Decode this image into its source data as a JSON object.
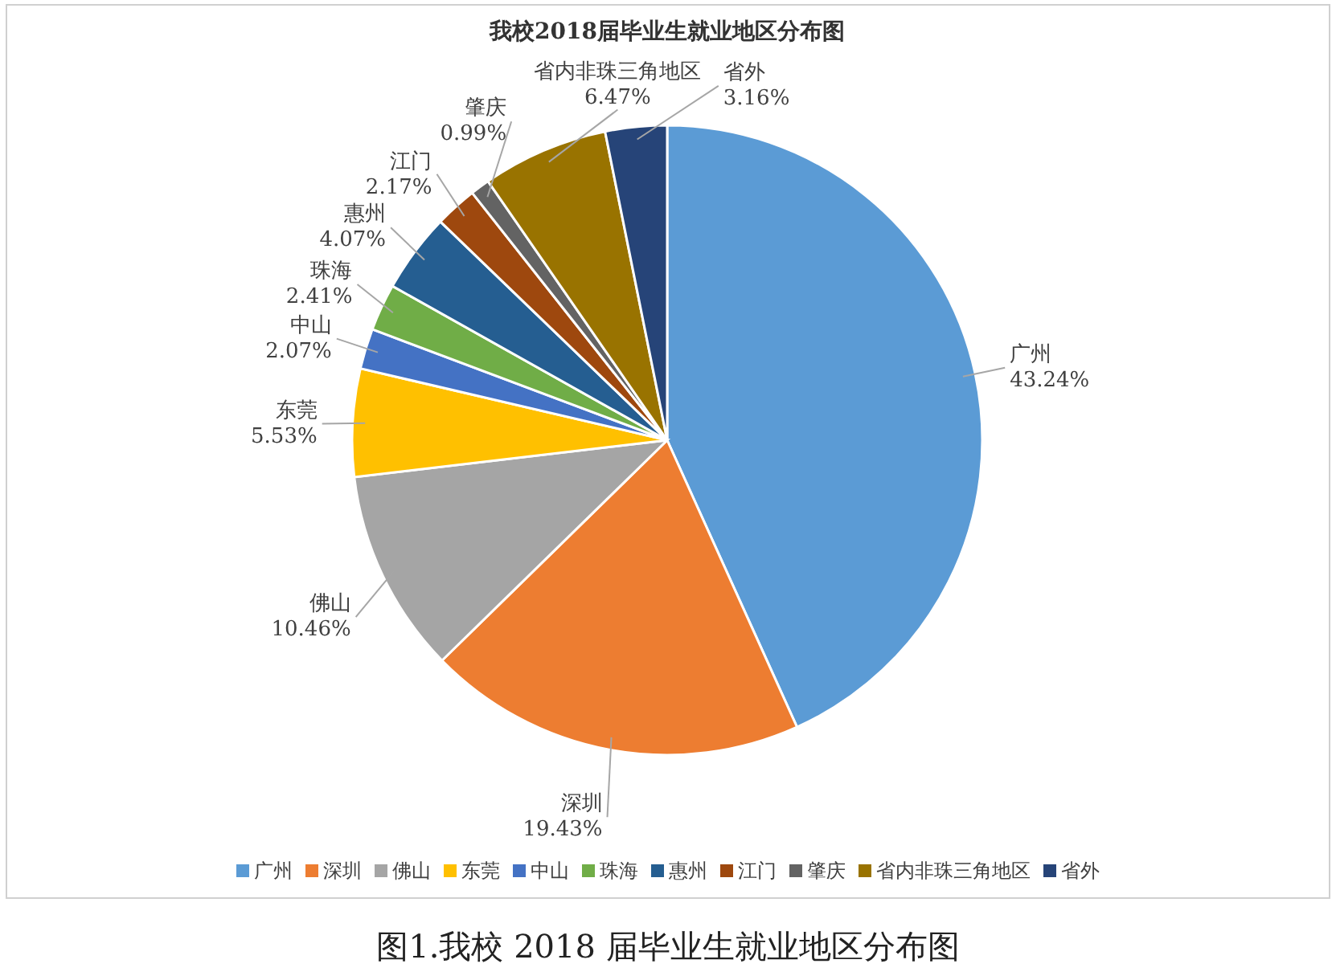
{
  "chart_data": {
    "type": "pie",
    "title": "我校2018届毕业生就业地区分布图",
    "categories": [
      "广州",
      "深圳",
      "佛山",
      "东莞",
      "中山",
      "珠海",
      "惠州",
      "江门",
      "肇庆",
      "省内非珠三角地区",
      "省外"
    ],
    "values": [
      43.24,
      19.43,
      10.46,
      5.53,
      2.07,
      2.41,
      4.07,
      2.17,
      0.99,
      6.47,
      3.16
    ],
    "value_labels": [
      "43.24%",
      "19.43%",
      "10.46%",
      "5.53%",
      "2.07%",
      "2.41%",
      "4.07%",
      "2.17%",
      "0.99%",
      "6.47%",
      "3.16%"
    ],
    "colors": [
      "#5b9bd5",
      "#ed7d31",
      "#a5a5a5",
      "#ffc000",
      "#4472c4",
      "#70ad47",
      "#255e91",
      "#9e480e",
      "#636363",
      "#997300",
      "#264478"
    ],
    "legend": "bottom",
    "annotations": [
      "图1.我校 2018 届毕业生就业地区分布图"
    ]
  }
}
